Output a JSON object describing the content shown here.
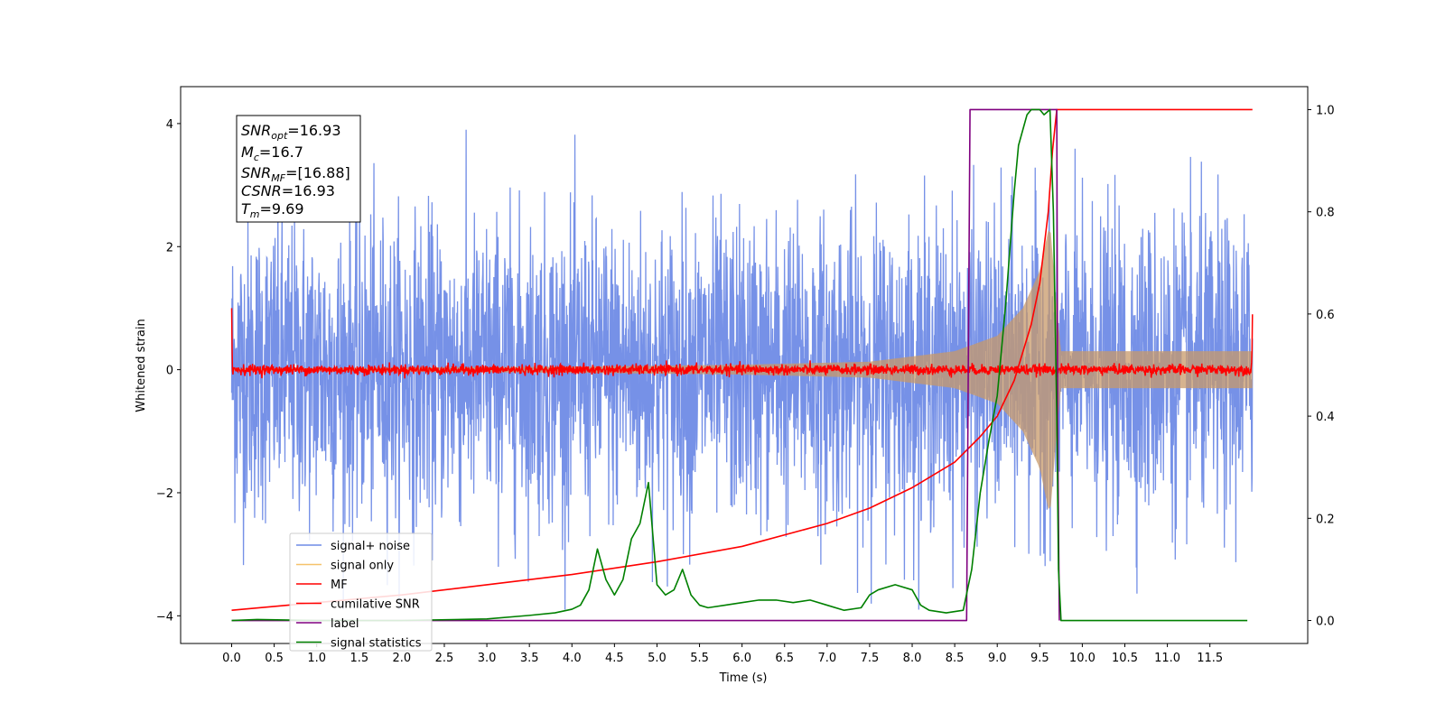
{
  "chart_data": {
    "type": "line",
    "xlabel": "Time (s)",
    "ylabel": "Whitened strain",
    "xlim": [
      -0.6,
      12.65
    ],
    "ylim": [
      -4.45,
      4.6
    ],
    "y2lim": [
      -0.045,
      1.045
    ],
    "xticks": [
      "0.0",
      "0.5",
      "1.0",
      "1.5",
      "2.0",
      "2.5",
      "3.0",
      "3.5",
      "4.0",
      "4.5",
      "5.0",
      "5.5",
      "6.0",
      "6.5",
      "7.0",
      "7.5",
      "8.0",
      "8.5",
      "9.0",
      "9.5",
      "10.0",
      "10.5",
      "11.0",
      "11.5"
    ],
    "yticks": [
      "4",
      "2",
      "0",
      "−2",
      "−4"
    ],
    "y2ticks": [
      "1.0",
      "0.8",
      "0.6",
      "0.4",
      "0.2",
      "0.0"
    ],
    "legend": {
      "placement": "lower-left",
      "entries": [
        "signal+ noise",
        "signal only",
        "MF",
        "cumilative SNR",
        "label",
        "signal statistics"
      ]
    },
    "info_box": {
      "snr_opt_label": "SNR",
      "snr_opt_sub": "opt",
      "snr_opt_value": "=16.93",
      "mc_label": "M",
      "mc_sub": "c",
      "mc_value": "=16.7",
      "snr_mf_label": "SNR",
      "snr_mf_sub": "MF",
      "snr_mf_value": "=[16.88]",
      "csnr_label": "CSNR",
      "csnr_value": "=16.93",
      "tm_label": "T",
      "tm_sub": "m",
      "tm_value": "=9.69"
    },
    "series": [
      {
        "name": "signal+ noise",
        "color": "#6f8be6",
        "axis": "left",
        "kind": "noise",
        "x_range": [
          0.0,
          12.0
        ],
        "typical_amplitude": 2.2,
        "max_abs": 3.9
      },
      {
        "name": "signal only",
        "color": "#f5c26b",
        "axis": "left",
        "kind": "chirp",
        "x_range": [
          0.0,
          12.0
        ],
        "envelope": [
          [
            0,
            0.02
          ],
          [
            4,
            0.05
          ],
          [
            6,
            0.08
          ],
          [
            7.5,
            0.13
          ],
          [
            8.5,
            0.3
          ],
          [
            9.0,
            0.55
          ],
          [
            9.3,
            1.0
          ],
          [
            9.5,
            1.6
          ],
          [
            9.62,
            2.4
          ],
          [
            9.7,
            1.0
          ],
          [
            9.75,
            0.3
          ],
          [
            10.5,
            0.3
          ],
          [
            11.5,
            0.3
          ],
          [
            12.0,
            0.3
          ]
        ]
      },
      {
        "name": "MF",
        "color": "#ff0000",
        "axis": "left",
        "kind": "mf",
        "x_range": [
          0.0,
          12.0
        ],
        "start_value": 1.0,
        "end_value": 0.9,
        "noise_amplitude": 0.07
      },
      {
        "name": "cumilative SNR",
        "color": "#ff0000",
        "axis": "right",
        "x": [
          0.0,
          1.0,
          2.0,
          3.0,
          4.0,
          5.0,
          6.0,
          7.0,
          7.5,
          8.0,
          8.5,
          8.8,
          9.0,
          9.2,
          9.4,
          9.5,
          9.6,
          9.65,
          9.7,
          9.72,
          10.0,
          11.0,
          12.0
        ],
        "values": [
          0.02,
          0.035,
          0.05,
          0.07,
          0.09,
          0.115,
          0.145,
          0.19,
          0.22,
          0.26,
          0.31,
          0.36,
          0.4,
          0.47,
          0.58,
          0.66,
          0.8,
          0.92,
          1.0,
          1.0,
          1.0,
          1.0,
          1.0
        ]
      },
      {
        "name": "label",
        "color": "#800080",
        "axis": "right",
        "x": [
          0.0,
          8.64,
          8.68,
          9.7,
          9.71,
          9.73
        ],
        "values": [
          0.0,
          0.0,
          1.0,
          1.0,
          0.4,
          0.0
        ]
      },
      {
        "name": "signal statistics",
        "color": "#008000",
        "axis": "right",
        "x": [
          0.0,
          0.3,
          1.0,
          2.0,
          3.0,
          3.5,
          3.8,
          4.0,
          4.1,
          4.2,
          4.3,
          4.4,
          4.5,
          4.6,
          4.7,
          4.8,
          4.9,
          5.0,
          5.1,
          5.2,
          5.3,
          5.4,
          5.5,
          5.6,
          5.8,
          6.0,
          6.2,
          6.4,
          6.6,
          6.8,
          7.0,
          7.2,
          7.4,
          7.5,
          7.6,
          7.8,
          8.0,
          8.1,
          8.2,
          8.4,
          8.6,
          8.7,
          8.8,
          8.9,
          9.0,
          9.1,
          9.2,
          9.25,
          9.3,
          9.35,
          9.4,
          9.5,
          9.55,
          9.62,
          9.66,
          9.7,
          9.72,
          9.75,
          10.0,
          11.0,
          11.94
        ],
        "values": [
          0.0,
          0.002,
          0.0,
          0.0,
          0.003,
          0.01,
          0.015,
          0.022,
          0.03,
          0.06,
          0.14,
          0.08,
          0.05,
          0.08,
          0.16,
          0.19,
          0.27,
          0.07,
          0.05,
          0.06,
          0.1,
          0.05,
          0.03,
          0.025,
          0.03,
          0.035,
          0.04,
          0.04,
          0.035,
          0.04,
          0.03,
          0.02,
          0.025,
          0.05,
          0.06,
          0.07,
          0.06,
          0.03,
          0.02,
          0.015,
          0.02,
          0.1,
          0.25,
          0.35,
          0.44,
          0.62,
          0.84,
          0.93,
          0.96,
          0.99,
          1.0,
          1.0,
          0.99,
          1.0,
          0.8,
          0.4,
          0.1,
          0.0,
          0.0,
          0.0,
          0.0
        ]
      }
    ]
  }
}
